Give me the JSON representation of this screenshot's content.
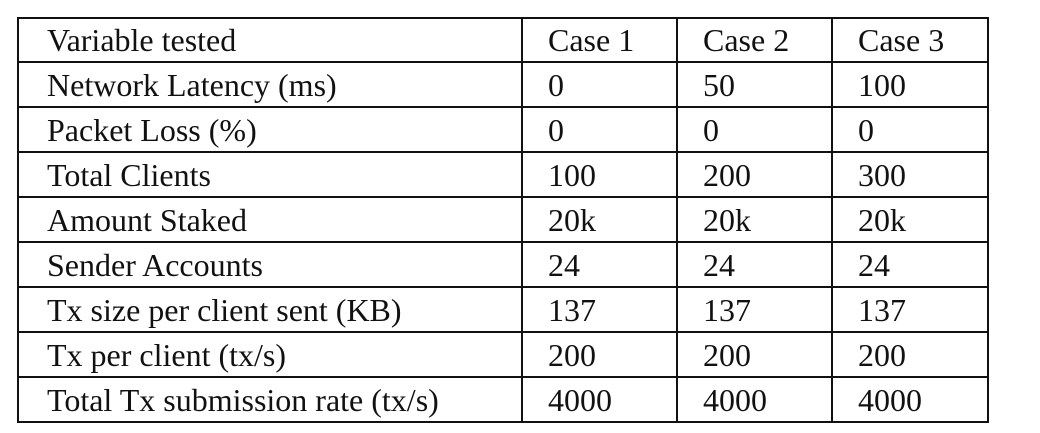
{
  "chart_data": {
    "type": "table",
    "columns": [
      "Variable tested",
      "Case 1",
      "Case 2",
      "Case 3"
    ],
    "rows": [
      [
        "Network Latency (ms)",
        "0",
        "50",
        "100"
      ],
      [
        "Packet Loss (%)",
        "0",
        "0",
        "0"
      ],
      [
        "Total Clients",
        "100",
        "200",
        "300"
      ],
      [
        "Amount Staked",
        "20k",
        "20k",
        "20k"
      ],
      [
        "Sender Accounts",
        "24",
        "24",
        "24"
      ],
      [
        "Tx size per client sent (KB)",
        "137",
        "137",
        "137"
      ],
      [
        "Tx per client (tx/s)",
        "200",
        "200",
        "200"
      ],
      [
        "Total Tx submission rate (tx/s)",
        "4000",
        "4000",
        "4000"
      ]
    ]
  }
}
